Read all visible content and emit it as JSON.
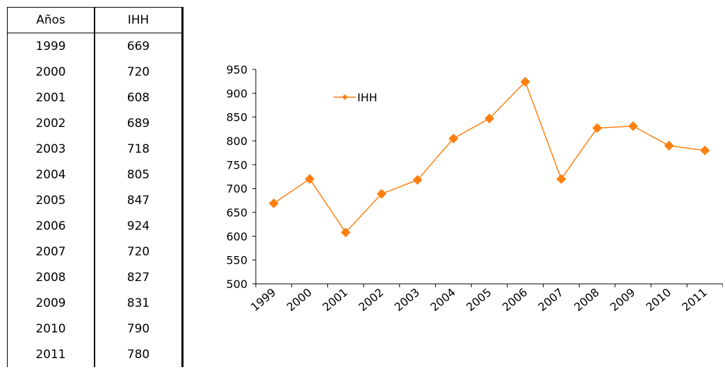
{
  "table": {
    "headers": [
      "Años",
      "IHH"
    ],
    "rows": [
      [
        "1999",
        "669"
      ],
      [
        "2000",
        "720"
      ],
      [
        "2001",
        "608"
      ],
      [
        "2002",
        "689"
      ],
      [
        "2003",
        "718"
      ],
      [
        "2004",
        "805"
      ],
      [
        "2005",
        "847"
      ],
      [
        "2006",
        "924"
      ],
      [
        "2007",
        "720"
      ],
      [
        "2008",
        "827"
      ],
      [
        "2009",
        "831"
      ],
      [
        "2010",
        "790"
      ],
      [
        "2011",
        "780"
      ]
    ]
  },
  "chart_data": {
    "type": "line",
    "categories": [
      "1999",
      "2000",
      "2001",
      "2002",
      "2003",
      "2004",
      "2005",
      "2006",
      "2007",
      "2008",
      "2009",
      "2010",
      "2011"
    ],
    "series": [
      {
        "name": "IHH",
        "color": "#FF7F0E",
        "values": [
          669,
          720,
          608,
          689,
          718,
          805,
          847,
          924,
          720,
          827,
          831,
          790,
          780
        ]
      }
    ],
    "ylim": [
      500,
      950
    ],
    "yticks": [
      500,
      550,
      600,
      650,
      700,
      750,
      800,
      850,
      900,
      950
    ],
    "legend": "top-left",
    "grid": false
  }
}
